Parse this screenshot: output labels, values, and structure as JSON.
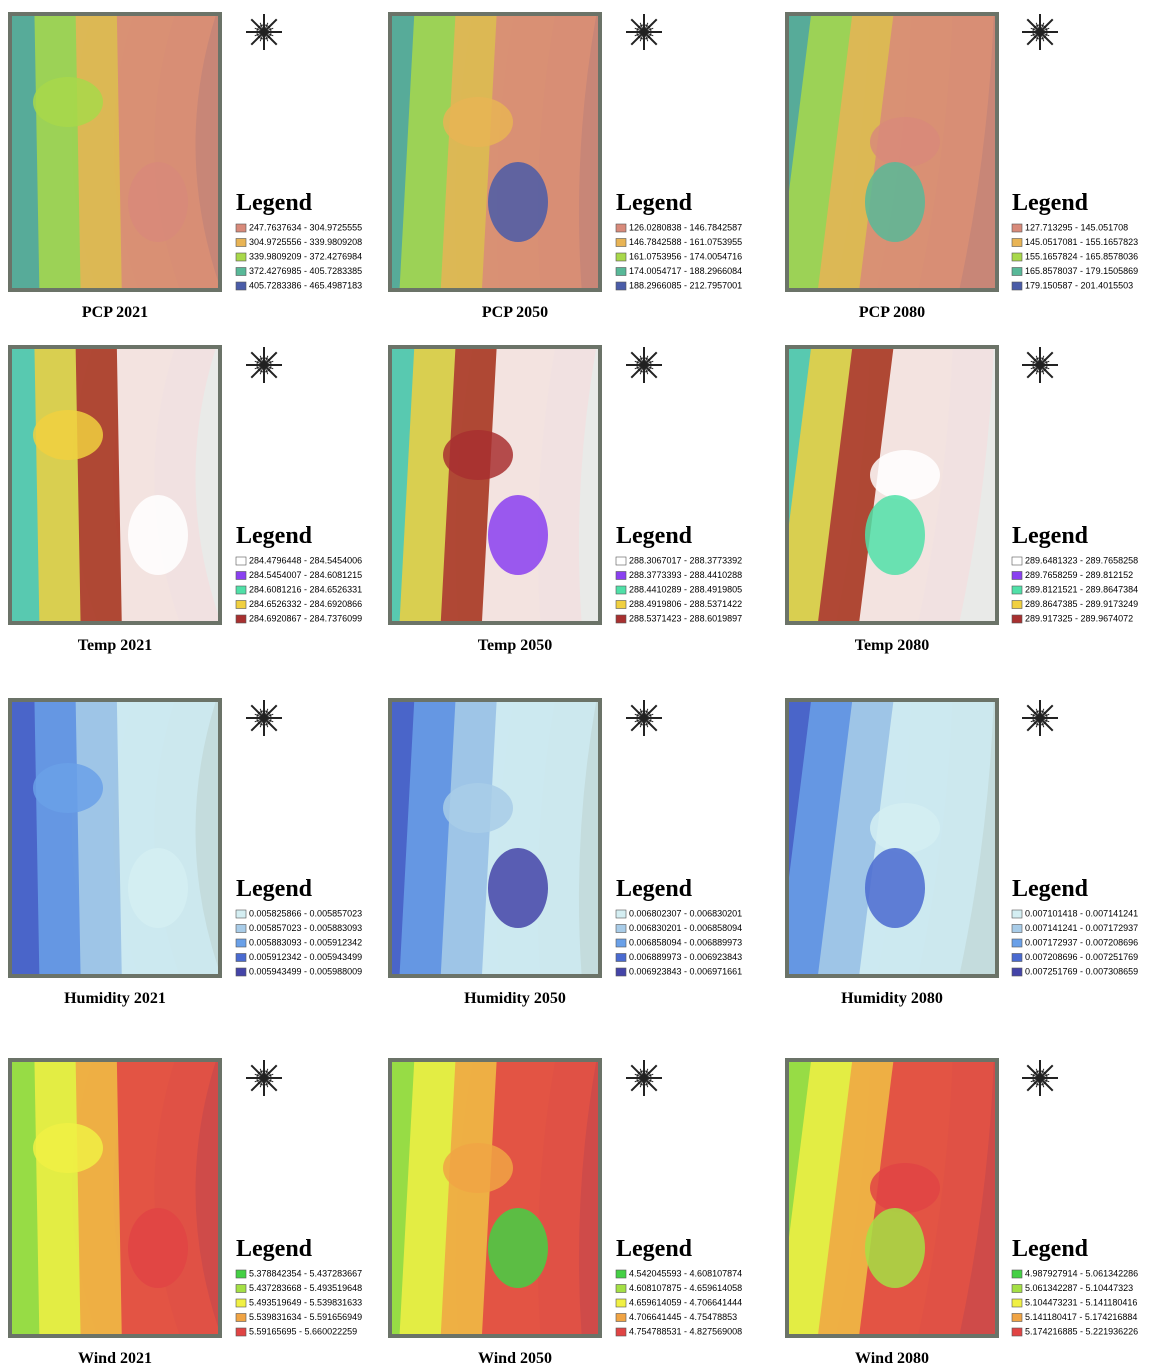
{
  "panels": [
    {
      "caption": "PCP 2021",
      "legend_title": "Legend",
      "colors": [
        "#d88a7a",
        "#e8b455",
        "#a8d84a",
        "#58b898",
        "#4a5ca8"
      ],
      "entries": [
        "247.7637634 - 304.9725555",
        "304.9725556 - 339.9809208",
        "339.9809209 - 372.4276984",
        "372.4276985 - 405.7283385",
        "405.7283386 - 465.4987183"
      ]
    },
    {
      "caption": "PCP 2050",
      "legend_title": "Legend",
      "colors": [
        "#d88a7a",
        "#e8b455",
        "#a8d84a",
        "#58b898",
        "#4a5ca8"
      ],
      "entries": [
        "126.0280838 - 146.7842587",
        "146.7842588 - 161.0753955",
        "161.0753956 - 174.0054716",
        "174.0054717 - 188.2966084",
        "188.2966085 - 212.7957001"
      ]
    },
    {
      "caption": "PCP 2080",
      "legend_title": "Legend",
      "colors": [
        "#d88a7a",
        "#e8b455",
        "#a8d84a",
        "#58b898",
        "#4a5ca8"
      ],
      "entries": [
        "127.713295 - 145.051708",
        "145.0517081 - 155.1657823",
        "155.1657824 - 165.8578036",
        "165.8578037 - 179.1505869",
        "179.150587 - 201.4015503"
      ]
    },
    {
      "caption": "Temp 2021",
      "legend_title": "Legend",
      "colors": [
        "#ffffff",
        "#8a40f0",
        "#50e0a8",
        "#f0d040",
        "#a83030"
      ],
      "entries": [
        "284.4796448 - 284.5454006",
        "284.5454007 - 284.6081215",
        "284.6081216 - 284.6526331",
        "284.6526332 - 284.6920866",
        "284.6920867 - 284.7376099"
      ]
    },
    {
      "caption": "Temp 2050",
      "legend_title": "Legend",
      "colors": [
        "#ffffff",
        "#8a40f0",
        "#50e0a8",
        "#f0d040",
        "#a83030"
      ],
      "entries": [
        "288.3067017 - 288.3773392",
        "288.3773393 - 288.4410288",
        "288.4410289 - 288.4919805",
        "288.4919806 - 288.5371422",
        "288.5371423 - 288.6019897"
      ]
    },
    {
      "caption": "Temp 2080",
      "legend_title": "Legend",
      "colors": [
        "#ffffff",
        "#8a40f0",
        "#50e0a8",
        "#f0d040",
        "#a83030"
      ],
      "entries": [
        "289.6481323 - 289.7658258",
        "289.7658259 - 289.812152",
        "289.8121521 - 289.8647384",
        "289.8647385 - 289.9173249",
        "289.917325 - 289.9674072"
      ]
    },
    {
      "caption": "Humidity 2021",
      "legend_title": "Legend",
      "colors": [
        "#d4eef2",
        "#a8cce8",
        "#6aa0e8",
        "#4a6ad0",
        "#4444a8"
      ],
      "entries": [
        "0.005825866 - 0.005857023",
        "0.005857023 - 0.005883093",
        "0.005883093 - 0.005912342",
        "0.005912342 - 0.005943499",
        "0.005943499 - 0.005988009"
      ]
    },
    {
      "caption": "Humidity 2050",
      "legend_title": "Legend",
      "colors": [
        "#d4eef2",
        "#a8cce8",
        "#6aa0e8",
        "#4a6ad0",
        "#4444a8"
      ],
      "entries": [
        "0.006802307 - 0.006830201",
        "0.006830201 - 0.006858094",
        "0.006858094 - 0.006889973",
        "0.006889973 - 0.006923843",
        "0.006923843 - 0.006971661"
      ]
    },
    {
      "caption": "Humidity 2080",
      "legend_title": "Legend",
      "colors": [
        "#d4eef2",
        "#a8cce8",
        "#6aa0e8",
        "#4a6ad0",
        "#4444a8"
      ],
      "entries": [
        "0.007101418 - 0.007141241",
        "0.007141241 - 0.007172937",
        "0.007172937 - 0.007208696",
        "0.007208696 - 0.007251769",
        "0.007251769 - 0.007308659"
      ]
    },
    {
      "caption": "Wind 2021",
      "legend_title": "Legend",
      "colors": [
        "#44d044",
        "#a4e044",
        "#f0f044",
        "#f0a444",
        "#e04444"
      ],
      "entries": [
        "5.378842354 - 5.437283667",
        "5.437283668 - 5.493519648",
        "5.493519649 - 5.539831633",
        "5.539831634 - 5.591656949",
        "5.59165695 - 5.660022259"
      ]
    },
    {
      "caption": "Wind 2050",
      "legend_title": "Legend",
      "colors": [
        "#44d044",
        "#a4e044",
        "#f0f044",
        "#f0a444",
        "#e04444"
      ],
      "entries": [
        "4.542045593 - 4.608107874",
        "4.608107875 - 4.659614058",
        "4.659614059 - 4.706641444",
        "4.706641445 - 4.75478853",
        "4.754788531 - 4.827569008"
      ]
    },
    {
      "caption": "Wind 2080",
      "legend_title": "Legend",
      "colors": [
        "#44d044",
        "#a4e044",
        "#f0f044",
        "#f0a444",
        "#e04444"
      ],
      "entries": [
        "4.987927914 - 5.061342286",
        "5.061342287 - 5.10447323",
        "5.104473231 - 5.141180416",
        "5.141180417 - 5.174216884",
        "5.174216885 - 5.221936226"
      ]
    }
  ]
}
